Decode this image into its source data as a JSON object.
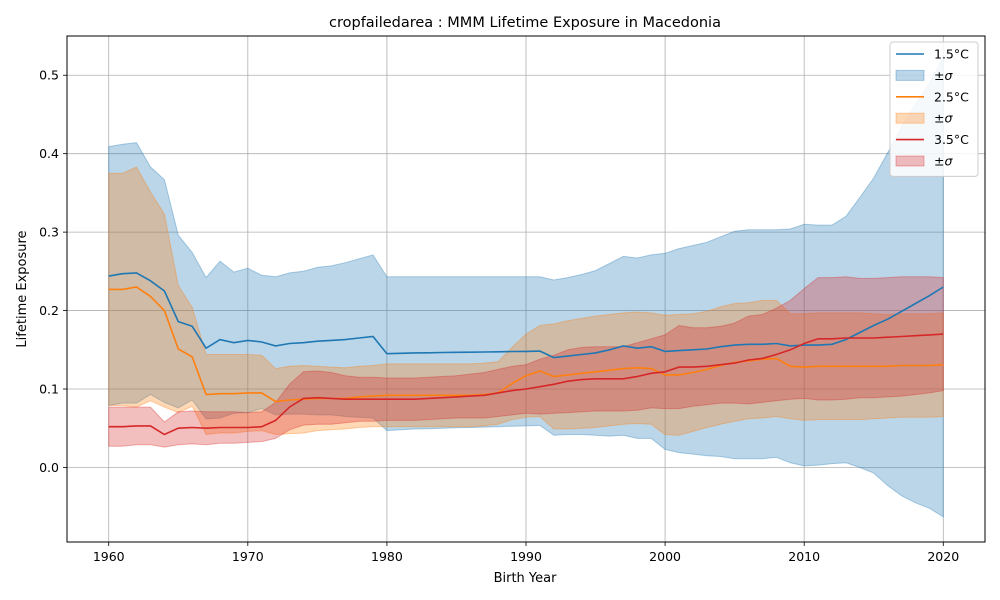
{
  "chart_data": {
    "type": "line",
    "title": "cropfailedarea : MMM Lifetime Exposure in Macedonia",
    "xlabel": "Birth Year",
    "ylabel": "Lifetime Exposure",
    "xlim": [
      1957,
      2023
    ],
    "ylim": [
      -0.095,
      0.55
    ],
    "x_ticks": [
      "1960",
      "1970",
      "1980",
      "1990",
      "2000",
      "2010",
      "2020"
    ],
    "y_ticks": [
      "0.0",
      "0.1",
      "0.2",
      "0.3",
      "0.4",
      "0.5"
    ],
    "grid": true,
    "legend_position": "top-right",
    "x": [
      1960,
      1961,
      1962,
      1963,
      1964,
      1965,
      1966,
      1967,
      1968,
      1969,
      1970,
      1971,
      1972,
      1973,
      1974,
      1975,
      1976,
      1977,
      1978,
      1979,
      1980,
      1981,
      1982,
      1983,
      1984,
      1985,
      1986,
      1987,
      1988,
      1989,
      1990,
      1991,
      1992,
      1993,
      1994,
      1995,
      1996,
      1997,
      1998,
      1999,
      2000,
      2001,
      2002,
      2003,
      2004,
      2005,
      2006,
      2007,
      2008,
      2009,
      2010,
      2011,
      2012,
      2013,
      2014,
      2015,
      2016,
      2017,
      2018,
      2019,
      2020
    ],
    "series": [
      {
        "name": "1.5°C",
        "band_name": "±σ",
        "color": "#1f77b4",
        "mean": [
          0.244,
          0.247,
          0.248,
          0.238,
          0.225,
          0.186,
          0.18,
          0.152,
          0.163,
          0.159,
          0.162,
          0.16,
          0.155,
          0.158,
          0.159,
          0.161,
          0.162,
          0.163,
          0.165,
          0.167,
          0.145,
          0.1455,
          0.146,
          0.1462,
          0.1465,
          0.1468,
          0.147,
          0.1472,
          0.1475,
          0.1478,
          0.148,
          0.1483,
          0.14,
          0.142,
          0.144,
          0.146,
          0.15,
          0.155,
          0.152,
          0.154,
          0.148,
          0.149,
          0.15,
          0.151,
          0.154,
          0.156,
          0.157,
          0.157,
          0.158,
          0.155,
          0.156,
          0.156,
          0.157,
          0.163,
          0.172,
          0.181,
          0.189,
          0.199,
          0.209,
          0.219,
          0.23
        ],
        "sd": [
          0.165,
          0.165,
          0.166,
          0.145,
          0.142,
          0.11,
          0.094,
          0.09,
          0.1,
          0.09,
          0.092,
          0.085,
          0.088,
          0.09,
          0.091,
          0.094,
          0.095,
          0.098,
          0.101,
          0.104,
          0.098,
          0.0975,
          0.097,
          0.0968,
          0.0965,
          0.0962,
          0.096,
          0.0958,
          0.0955,
          0.0952,
          0.095,
          0.0947,
          0.099,
          0.1,
          0.102,
          0.105,
          0.11,
          0.114,
          0.115,
          0.117,
          0.125,
          0.13,
          0.133,
          0.136,
          0.14,
          0.145,
          0.146,
          0.146,
          0.145,
          0.149,
          0.154,
          0.153,
          0.152,
          0.157,
          0.172,
          0.188,
          0.212,
          0.235,
          0.254,
          0.271,
          0.293
        ]
      },
      {
        "name": "2.5°C",
        "band_name": "±σ",
        "color": "#ff7f0e",
        "mean": [
          0.227,
          0.227,
          0.23,
          0.218,
          0.2,
          0.151,
          0.141,
          0.093,
          0.094,
          0.094,
          0.095,
          0.095,
          0.084,
          0.086,
          0.087,
          0.088,
          0.088,
          0.088,
          0.09,
          0.091,
          0.092,
          0.092,
          0.092,
          0.092,
          0.092,
          0.092,
          0.092,
          0.093,
          0.095,
          0.107,
          0.117,
          0.123,
          0.116,
          0.118,
          0.12,
          0.122,
          0.124,
          0.126,
          0.127,
          0.126,
          0.118,
          0.118,
          0.121,
          0.125,
          0.13,
          0.134,
          0.136,
          0.138,
          0.139,
          0.129,
          0.128,
          0.129,
          0.129,
          0.129,
          0.129,
          0.129,
          0.129,
          0.13,
          0.13,
          0.13,
          0.131
        ],
        "sd": [
          0.148,
          0.148,
          0.153,
          0.133,
          0.123,
          0.081,
          0.063,
          0.051,
          0.05,
          0.05,
          0.049,
          0.048,
          0.042,
          0.043,
          0.043,
          0.041,
          0.04,
          0.039,
          0.039,
          0.039,
          0.04,
          0.04,
          0.04,
          0.04,
          0.04,
          0.04,
          0.04,
          0.04,
          0.04,
          0.046,
          0.053,
          0.058,
          0.067,
          0.069,
          0.07,
          0.071,
          0.071,
          0.071,
          0.071,
          0.071,
          0.076,
          0.077,
          0.075,
          0.074,
          0.075,
          0.075,
          0.074,
          0.075,
          0.074,
          0.067,
          0.068,
          0.068,
          0.068,
          0.068,
          0.068,
          0.067,
          0.066,
          0.066,
          0.066,
          0.066,
          0.066
        ]
      },
      {
        "name": "3.5°C",
        "band_name": "±σ",
        "color": "#d62728",
        "mean": [
          0.052,
          0.052,
          0.053,
          0.053,
          0.042,
          0.05,
          0.051,
          0.05,
          0.051,
          0.051,
          0.051,
          0.052,
          0.06,
          0.077,
          0.088,
          0.089,
          0.088,
          0.087,
          0.087,
          0.087,
          0.087,
          0.087,
          0.087,
          0.088,
          0.089,
          0.09,
          0.091,
          0.092,
          0.095,
          0.098,
          0.1,
          0.103,
          0.106,
          0.11,
          0.112,
          0.113,
          0.113,
          0.113,
          0.116,
          0.12,
          0.122,
          0.128,
          0.128,
          0.129,
          0.131,
          0.133,
          0.137,
          0.139,
          0.144,
          0.15,
          0.158,
          0.164,
          0.164,
          0.165,
          0.165,
          0.165,
          0.166,
          0.167,
          0.168,
          0.169,
          0.17
        ],
        "sd": [
          0.025,
          0.025,
          0.024,
          0.024,
          0.016,
          0.021,
          0.021,
          0.021,
          0.02,
          0.02,
          0.019,
          0.019,
          0.023,
          0.029,
          0.034,
          0.034,
          0.033,
          0.03,
          0.028,
          0.028,
          0.027,
          0.027,
          0.027,
          0.027,
          0.027,
          0.027,
          0.028,
          0.029,
          0.03,
          0.031,
          0.031,
          0.035,
          0.037,
          0.04,
          0.041,
          0.041,
          0.041,
          0.041,
          0.043,
          0.044,
          0.047,
          0.053,
          0.05,
          0.049,
          0.049,
          0.051,
          0.056,
          0.056,
          0.059,
          0.063,
          0.07,
          0.078,
          0.078,
          0.078,
          0.076,
          0.076,
          0.076,
          0.076,
          0.075,
          0.074,
          0.072
        ]
      }
    ]
  }
}
